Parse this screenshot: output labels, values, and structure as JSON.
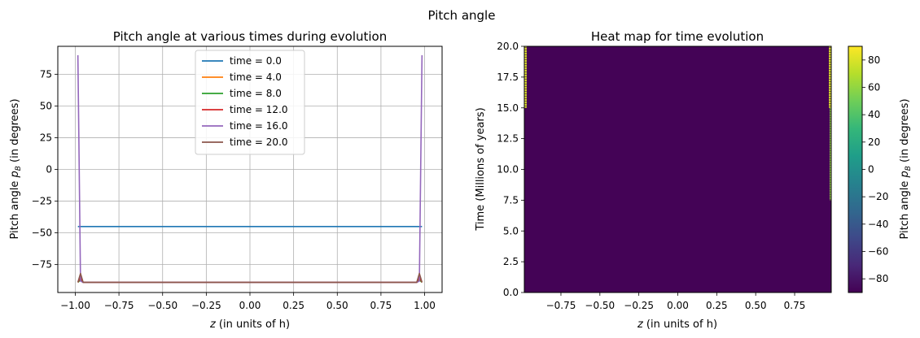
{
  "figure_title": "Pitch angle",
  "chart_data": [
    {
      "type": "line",
      "title": "Pitch angle at various times during evolution",
      "xlabel_prefix": "z",
      "xlabel_suffix": " (in units of h)",
      "ylabel_prefix": "Pitch angle ",
      "ylabel_symbol": "p",
      "ylabel_subscript": "B",
      "ylabel_suffix": " (in degrees)",
      "xlim": [
        -1.1,
        1.1
      ],
      "ylim": [
        -97,
        97
      ],
      "xticks": [
        -1.0,
        -0.75,
        -0.5,
        -0.25,
        0.0,
        0.25,
        0.5,
        0.75,
        1.0
      ],
      "xtick_labels": [
        "−1.00",
        "−0.75",
        "−0.50",
        "−0.25",
        "0.00",
        "0.25",
        "0.50",
        "0.75",
        "1.00"
      ],
      "yticks": [
        -75,
        -50,
        -25,
        0,
        25,
        50,
        75
      ],
      "ytick_labels": [
        "−75",
        "−50",
        "−25",
        "0",
        "25",
        "50",
        "75"
      ],
      "grid": true,
      "legend_position": "top-center",
      "series": [
        {
          "name": "time = 0.0",
          "color": "#1f77b4",
          "x": [
            -0.985,
            0.985
          ],
          "y": [
            -45,
            -45
          ]
        },
        {
          "name": "time = 4.0",
          "color": "#ff7f0e",
          "x": [
            -0.985,
            -0.97,
            -0.955,
            0.955,
            0.97,
            0.985
          ],
          "y": [
            -89,
            -86,
            -89,
            -89,
            -86,
            -89
          ]
        },
        {
          "name": "time = 8.0",
          "color": "#2ca02c",
          "x": [
            -0.985,
            -0.97,
            -0.955,
            0.955,
            0.97,
            0.985
          ],
          "y": [
            -89,
            -87,
            -89,
            -89,
            -87,
            -89
          ]
        },
        {
          "name": "time = 12.0",
          "color": "#d62728",
          "x": [
            -0.985,
            -0.97,
            -0.955,
            0.955,
            0.97,
            0.985
          ],
          "y": [
            -89,
            -85,
            -89,
            -89,
            -85,
            -89
          ]
        },
        {
          "name": "time = 16.0",
          "color": "#9467bd",
          "x": [
            -0.985,
            -0.97,
            -0.955,
            0.955,
            0.97,
            0.985
          ],
          "y": [
            90,
            -88,
            -89,
            -89,
            -88,
            90
          ]
        },
        {
          "name": "time = 20.0",
          "color": "#8c564b",
          "x": [
            -0.985,
            -0.97,
            -0.955,
            0.955,
            0.97,
            0.985
          ],
          "y": [
            -89,
            -82,
            -89,
            -89,
            -82,
            -89
          ]
        }
      ]
    },
    {
      "type": "heatmap",
      "title": "Heat map for time evolution",
      "xlabel_prefix": "z",
      "xlabel_suffix": " (in units of h)",
      "ylabel": "Time (Millions of years)",
      "xlim": [
        -0.985,
        0.985
      ],
      "ylim": [
        0,
        20
      ],
      "xticks": [
        -0.75,
        -0.5,
        -0.25,
        0.0,
        0.25,
        0.5,
        0.75
      ],
      "xtick_labels": [
        "−0.75",
        "−0.50",
        "−0.25",
        "0.00",
        "0.25",
        "0.50",
        "0.75"
      ],
      "yticks": [
        0,
        2.5,
        5,
        7.5,
        10,
        12.5,
        15,
        17.5,
        20
      ],
      "ytick_labels": [
        "0.0",
        "2.5",
        "5.0",
        "7.5",
        "10.0",
        "12.5",
        "15.0",
        "17.5",
        "20.0"
      ],
      "background_value": -89,
      "edge_regions": [
        {
          "side": "left",
          "z_range": [
            -0.985,
            -0.97
          ],
          "t_range": [
            15,
            20
          ],
          "value": 80
        },
        {
          "side": "right",
          "z_range": [
            0.97,
            0.985
          ],
          "t_range": [
            15,
            20
          ],
          "value": 80
        },
        {
          "side": "right",
          "z_range": [
            0.975,
            0.985
          ],
          "t_range": [
            7.5,
            15
          ],
          "value": 60
        }
      ],
      "colorbar": {
        "label_prefix": "Pitch angle ",
        "label_symbol": "p",
        "label_subscript": "B",
        "label_suffix": " (in degrees)",
        "range": [
          -90,
          90
        ],
        "ticks": [
          -80,
          -60,
          -40,
          -20,
          0,
          20,
          40,
          60,
          80
        ],
        "tick_labels": [
          "−80",
          "−60",
          "−40",
          "−20",
          "0",
          "20",
          "40",
          "60",
          "80"
        ],
        "colormap": "viridis",
        "stops": [
          "#440154",
          "#482878",
          "#3e4989",
          "#31688e",
          "#26828e",
          "#1f9e89",
          "#35b779",
          "#6ece58",
          "#b5de2b",
          "#fde725"
        ]
      }
    }
  ]
}
